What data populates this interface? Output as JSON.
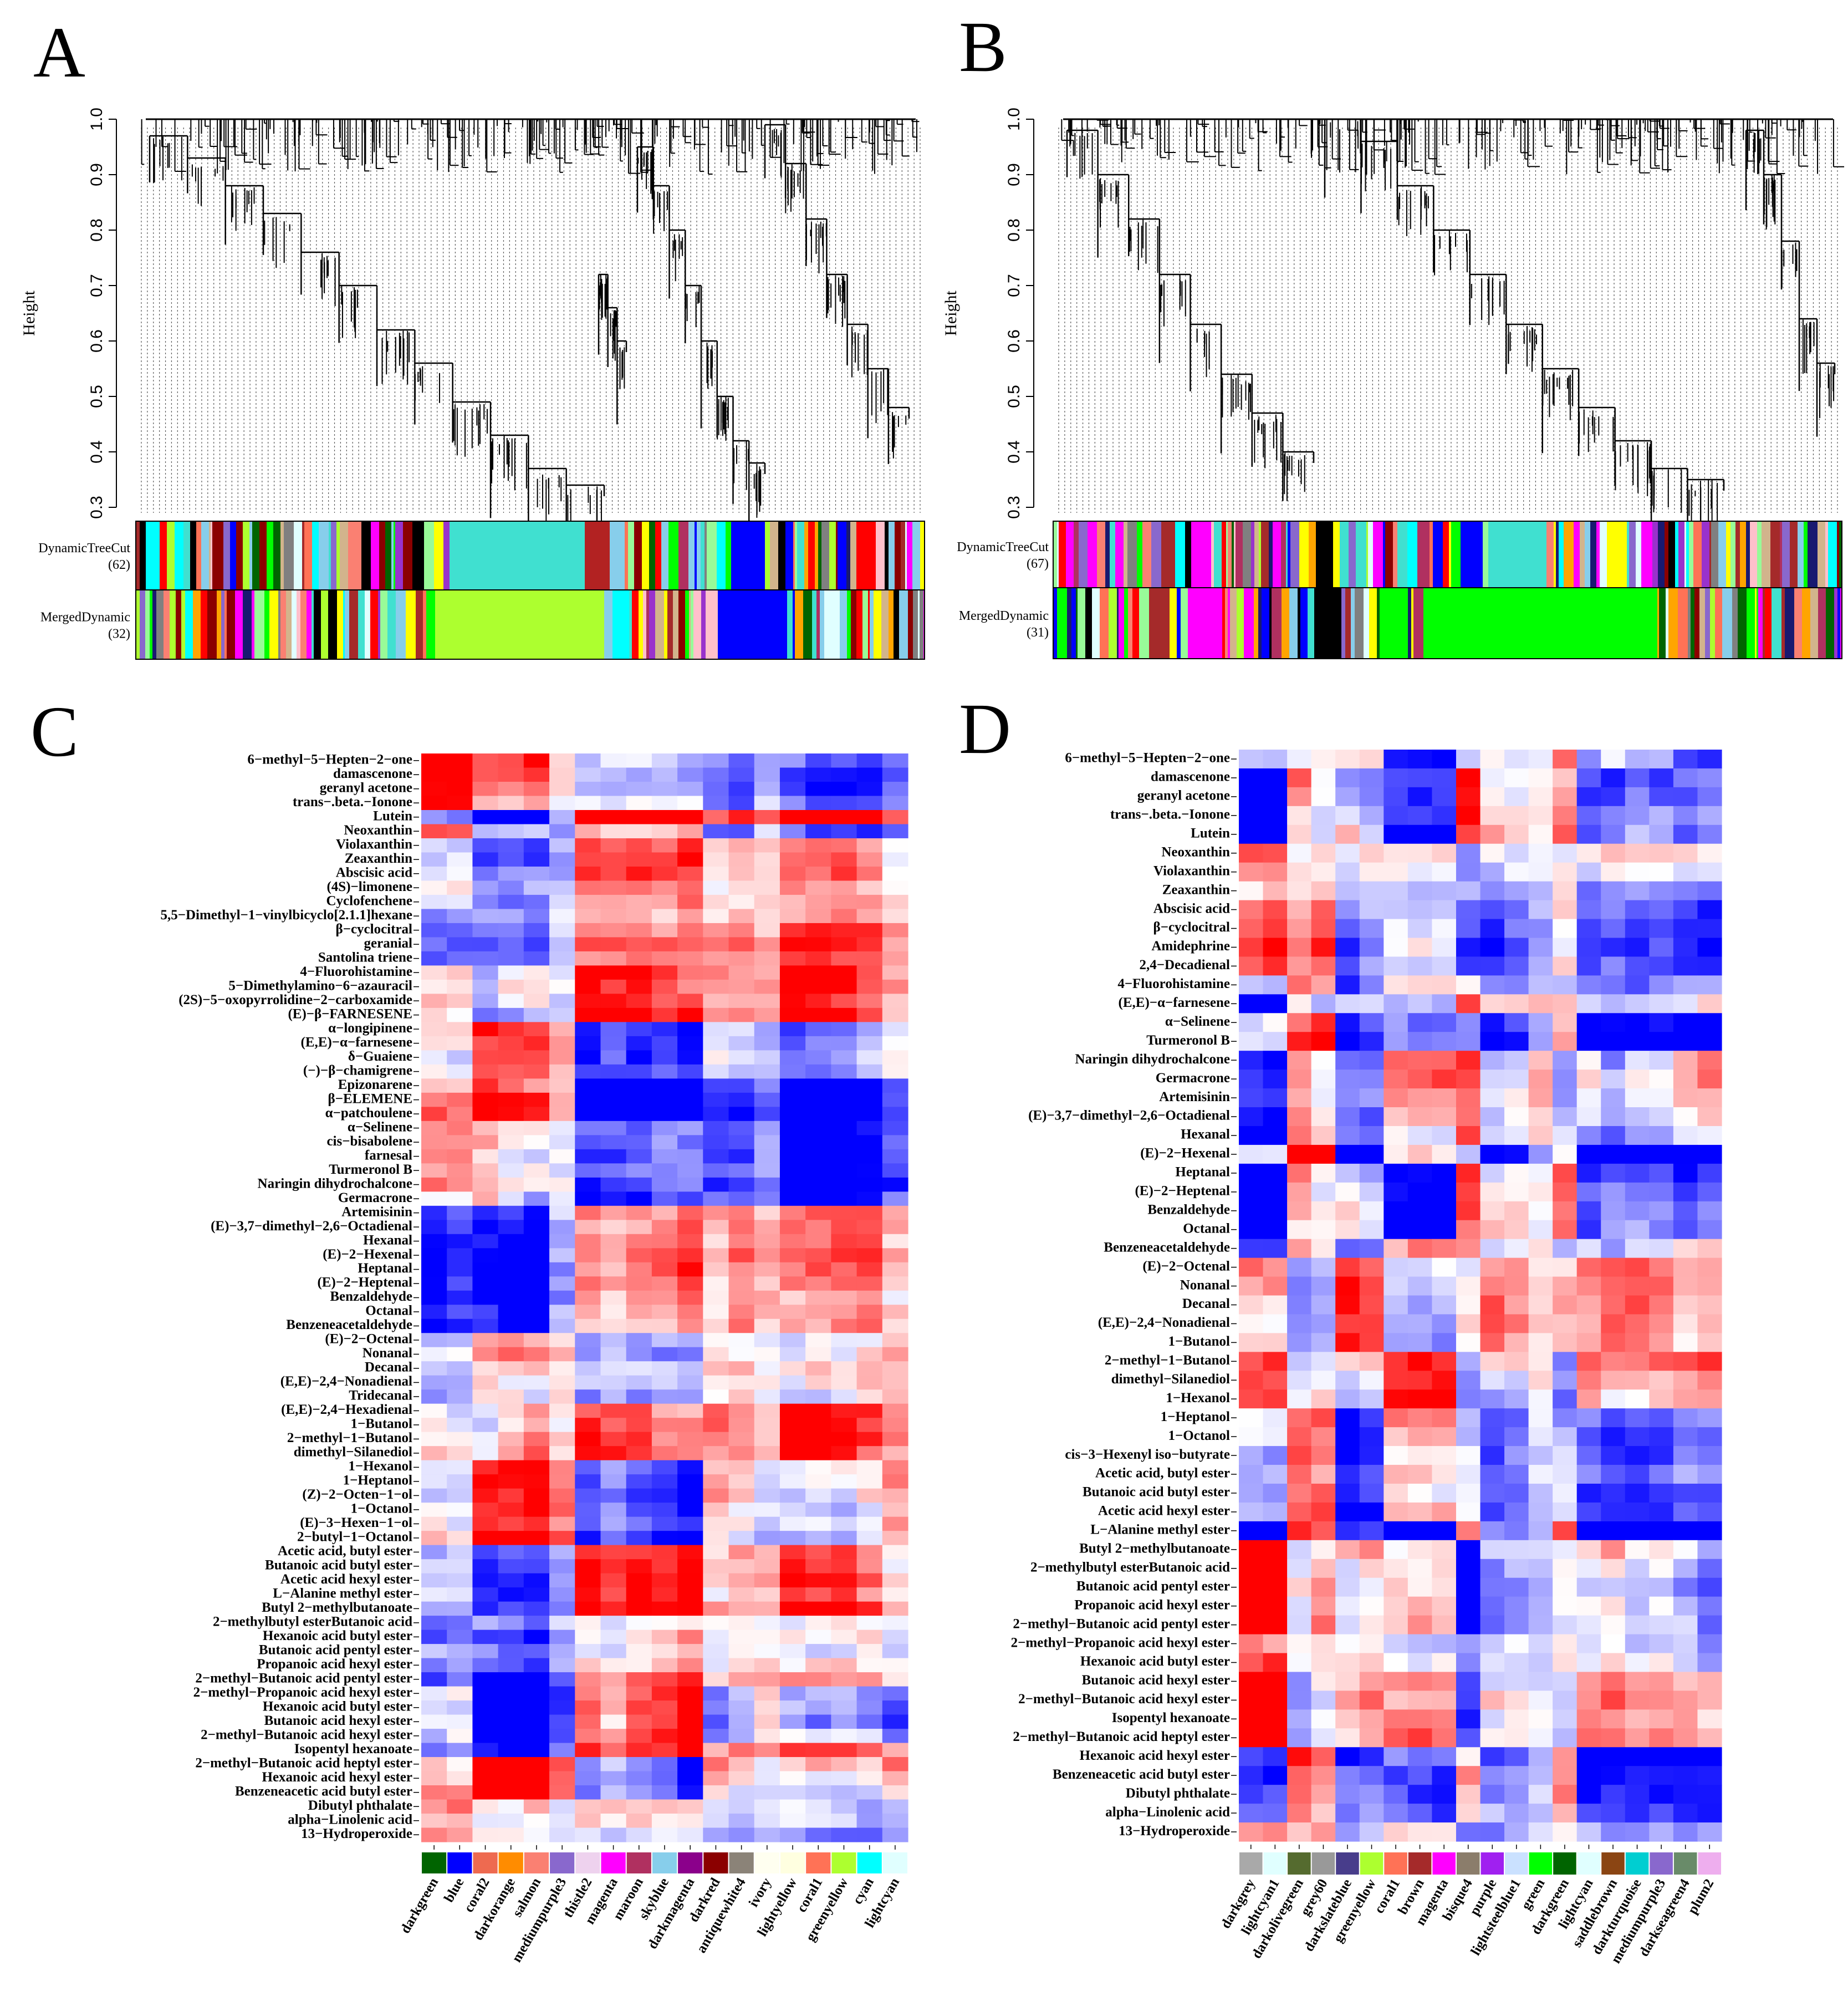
{
  "panels": {
    "a": {
      "label": "A"
    },
    "b": {
      "label": "B"
    },
    "c": {
      "label": "C"
    },
    "d": {
      "label": "D"
    }
  },
  "chart_data": [
    {
      "id": "A",
      "type": "dendrogram",
      "ylabel": "Height",
      "ylim": [
        0.3,
        1.0
      ],
      "yticks": [
        "0.3",
        "0.4",
        "0.5",
        "0.6",
        "0.7",
        "0.8",
        "0.9",
        "1.0"
      ],
      "rows": [
        {
          "label": "DynamicTreeCut",
          "count": "(62)"
        },
        {
          "label": "MergedDynamic",
          "count": "(32)"
        }
      ],
      "merge_heights_left_cluster": [
        0.34,
        0.36,
        0.4,
        0.48,
        0.55,
        0.62,
        0.7,
        0.76,
        0.83,
        0.9,
        0.97,
        1.0
      ],
      "merge_heights_right_cluster": [
        0.38,
        0.45,
        0.55,
        0.63,
        0.72,
        0.8,
        0.88,
        0.95,
        0.99
      ]
    },
    {
      "id": "B",
      "type": "dendrogram",
      "ylabel": "Height",
      "ylim": [
        0.3,
        1.0
      ],
      "yticks": [
        "0.3",
        "0.4",
        "0.5",
        "0.6",
        "0.7",
        "0.8",
        "0.9",
        "1.0"
      ],
      "rows": [
        {
          "label": "DynamicTreeCut",
          "count": "(67)"
        },
        {
          "label": "MergedDynamic",
          "count": "(31)"
        }
      ],
      "merge_heights_left_cluster": [
        0.39,
        0.45,
        0.55,
        0.65,
        0.72,
        0.8,
        0.9,
        0.98
      ],
      "merge_heights_right_cluster": [
        0.35,
        0.4,
        0.47,
        0.55,
        0.63,
        0.72,
        0.8,
        0.88,
        0.96,
        1.0
      ]
    },
    {
      "id": "C",
      "type": "heatmap",
      "rows": [
        "6−methyl−5−Hepten−2−one",
        "damascenone",
        "geranyl acetone",
        "trans−.beta.−Ionone",
        "Lutein",
        "Neoxanthin",
        "Violaxanthin",
        "Zeaxanthin",
        "Abscisic acid",
        "(4S)−limonene",
        "Cyclofenchene",
        "5,5−Dimethyl−1−vinylbicyclo[2.1.1]hexane",
        "β−cyclocitral",
        "geranial",
        "Santolina triene",
        "4−Fluorohistamine",
        "5−Dimethylamino−6−azauracil",
        "(2S)−5−oxopyrrolidine−2−carboxamide",
        "(E)−β−FARNESENE",
        "α−longipinene",
        "(E,E)−α−farnesene",
        "δ−Guaiene",
        "(−)−β−chamigrene",
        "Epizonarene",
        "β−ELEMENE",
        "α−patchoulene",
        "α−Selinene",
        "cis−bisabolene",
        "farnesal",
        "Turmeronol B",
        "Naringin dihydrochalcone",
        "Germacrone",
        "Artemisinin",
        "(E)−3,7−dimethyl−2,6−Octadienal",
        "Hexanal",
        "(E)−2−Hexenal",
        "Heptanal",
        "(E)−2−Heptenal",
        "Benzaldehyde",
        "Octanal",
        "Benzeneacetaldehyde",
        "(E)−2−Octenal",
        "Nonanal",
        "Decanal",
        "(E,E)−2,4−Nonadienal",
        "Tridecanal",
        "(E,E)−2,4−Hexadienal",
        "1−Butanol",
        "2−methyl−1−Butanol",
        "dimethyl−Silanediol",
        "1−Hexanol",
        "1−Heptanol",
        "(Z)−2−Octen−1−ol",
        "1−Octanol",
        "(E)−3−Hexen−1−ol",
        "2−butyl−1−Octanol",
        "Acetic acid, butyl ester",
        "Butanoic acid  butyl ester",
        "Acetic acid  hexyl ester",
        "L−Alanine  methyl ester",
        "Butyl 2−methylbutanoate",
        "2−methylbutyl esterButanoic acid",
        "Hexanoic acid butyl ester",
        "Butanoic acid  pentyl ester",
        "Propanoic acid  hexyl ester",
        "2−methyl−Butanoic acid pentyl ester",
        "2−methyl−Propanoic acid hexyl ester",
        "Hexanoic acid butyl ester",
        "Butanoic acid hexyl ester",
        "2−methyl−Butanoic acid  hexyl ester",
        "Isopentyl hexanoate",
        "2−methyl−Butanoic acid  heptyl ester",
        "Hexanoic acid  hexyl ester",
        "Benzeneacetic acid  butyl ester",
        "Dibutyl phthalate",
        "alpha−Linolenic acid",
        "13−Hydroperoxide"
      ],
      "columns": [
        {
          "name": "darkgreen",
          "color": "#006400"
        },
        {
          "name": "blue",
          "color": "#0000ff"
        },
        {
          "name": "coral2",
          "color": "#ee6a50"
        },
        {
          "name": "darkorange",
          "color": "#ff8c00"
        },
        {
          "name": "salmon",
          "color": "#fa8072"
        },
        {
          "name": "mediumpurple3",
          "color": "#8968cd"
        },
        {
          "name": "thistle2",
          "color": "#eed2ee"
        },
        {
          "name": "magenta",
          "color": "#ff00ff"
        },
        {
          "name": "maroon",
          "color": "#b03060"
        },
        {
          "name": "skyblue",
          "color": "#87ceeb"
        },
        {
          "name": "darkmagenta",
          "color": "#8b008b"
        },
        {
          "name": "darkred",
          "color": "#8b0000"
        },
        {
          "name": "antiquewhite4",
          "color": "#8b8378"
        },
        {
          "name": "ivory",
          "color": "#fffff0"
        },
        {
          "name": "lightyellow",
          "color": "#ffffe0"
        },
        {
          "name": "coral1",
          "color": "#ff7256"
        },
        {
          "name": "greenyellow",
          "color": "#adff2f"
        },
        {
          "name": "cyan",
          "color": "#00ffff"
        },
        {
          "name": "lightcyan",
          "color": "#e0ffff"
        }
      ],
      "color_scale": {
        "low": "#0000ff",
        "mid": "#ffffff",
        "high": "#ff0000",
        "range": [
          -1,
          1
        ]
      }
    },
    {
      "id": "D",
      "type": "heatmap",
      "rows": [
        "6−methyl−5−Hepten−2−one",
        "damascenone",
        "geranyl acetone",
        "trans−.beta.−Ionone",
        "Lutein",
        "Neoxanthin",
        "Violaxanthin",
        "Zeaxanthin",
        "Abscisic acid",
        "β−cyclocitral",
        "Amidephrine",
        "2,4−Decadienal",
        "4−Fluorohistamine",
        "(E,E)−α−farnesene",
        "α−Selinene",
        "Turmeronol B",
        "Naringin dihydrochalcone",
        "Germacrone",
        "Artemisinin",
        "(E)−3,7−dimethyl−2,6−Octadienal",
        "Hexanal",
        "(E)−2−Hexenal",
        "Heptanal",
        "(E)−2−Heptenal",
        "Benzaldehyde",
        "Octanal",
        "Benzeneacetaldehyde",
        "(E)−2−Octenal",
        "Nonanal",
        "Decanal",
        "(E,E)−2,4−Nonadienal",
        "1−Butanol",
        "2−methyl−1−Butanol",
        "dimethyl−Silanediol",
        "1−Hexanol",
        "1−Heptanol",
        "1−Octanol",
        "cis−3−Hexenyl iso−butyrate",
        "Acetic acid, butyl ester",
        "Butanoic acid  butyl ester",
        "Acetic acid  hexyl ester",
        "L−Alanine  methyl ester",
        "Butyl 2−methylbutanoate",
        "2−methylbutyl esterButanoic acid",
        "Butanoic acid  pentyl ester",
        "Propanoic acid  hexyl ester",
        "2−methyl−Butanoic acid pentyl ester",
        "2−methyl−Propanoic acid hexyl ester",
        "Hexanoic acid butyl ester",
        "Butanoic acid hexyl ester",
        "2−methyl−Butanoic acid  hexyl ester",
        "Isopentyl hexanoate",
        "2−methyl−Butanoic acid  heptyl ester",
        "Hexanoic acid  hexyl ester",
        "Benzeneacetic acid  butyl ester",
        "Dibutyl phthalate",
        "alpha−Linolenic acid",
        "13−Hydroperoxide"
      ],
      "columns": [
        {
          "name": "darkgrey",
          "color": "#a9a9a9"
        },
        {
          "name": "lightcyan1",
          "color": "#e0ffff"
        },
        {
          "name": "darkolivegreen",
          "color": "#556b2f"
        },
        {
          "name": "grey60",
          "color": "#999999"
        },
        {
          "name": "darkslateblue",
          "color": "#483d8b"
        },
        {
          "name": "greenyellow",
          "color": "#adff2f"
        },
        {
          "name": "coral1",
          "color": "#ff7256"
        },
        {
          "name": "brown",
          "color": "#a52a2a"
        },
        {
          "name": "magenta",
          "color": "#ff00ff"
        },
        {
          "name": "bisque4",
          "color": "#8b7d6b"
        },
        {
          "name": "purple",
          "color": "#a020f0"
        },
        {
          "name": "lightsteelblue1",
          "color": "#cae1ff"
        },
        {
          "name": "green",
          "color": "#00ff00"
        },
        {
          "name": "darkgreen",
          "color": "#006400"
        },
        {
          "name": "lightcyan",
          "color": "#e0ffff"
        },
        {
          "name": "saddlebrown",
          "color": "#8b4513"
        },
        {
          "name": "darkturquoise",
          "color": "#00ced1"
        },
        {
          "name": "mediumpurple3",
          "color": "#8968cd"
        },
        {
          "name": "darkseagreen4",
          "color": "#698b69"
        },
        {
          "name": "plum2",
          "color": "#eeaeee"
        }
      ],
      "color_scale": {
        "low": "#0000ff",
        "mid": "#ffffff",
        "high": "#ff0000",
        "range": [
          -1,
          1
        ]
      }
    }
  ]
}
